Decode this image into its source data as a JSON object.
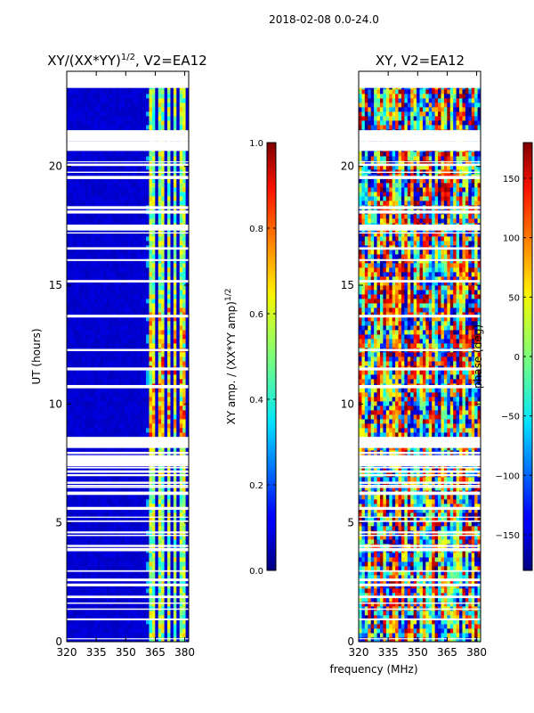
{
  "figure": {
    "suptitle": "2018-02-08 0.0-24.0",
    "xlabel": "frequency (MHz)"
  },
  "chart_data": [
    {
      "type": "heatmap",
      "title_main": "XY/(XX*YY)",
      "title_sup": "1/2",
      "title_rest": ", V2=EA12",
      "ylabel": "UT (hours)",
      "xlim": [
        320,
        382
      ],
      "ylim": [
        0,
        24
      ],
      "xticks": [
        320,
        335,
        350,
        365,
        380
      ],
      "yticks": [
        0,
        5,
        10,
        15,
        20
      ],
      "colorbar": {
        "label": "XY amp. / (XX*YY amp)",
        "label_sup": "1/2",
        "range": [
          0.0,
          1.0
        ],
        "ticks": [
          "0.0",
          "0.2",
          "0.4",
          "0.6",
          "0.8",
          "1.0"
        ],
        "tick_values": [
          0.0,
          0.2,
          0.4,
          0.6,
          0.8,
          1.0
        ],
        "colormap": "jet"
      },
      "description": "Normalized cross-correlation amplitude vs frequency and UT; mostly low (~0.05) with bright bands near 360-380 MHz"
    },
    {
      "type": "heatmap",
      "title": "XY, V2=EA12",
      "ylabel": "",
      "xlim": [
        320,
        382
      ],
      "ylim": [
        0,
        24
      ],
      "xticks": [
        320,
        335,
        350,
        365,
        380
      ],
      "yticks": [
        0,
        5,
        10,
        15,
        20
      ],
      "colorbar": {
        "label": "phase (deg)",
        "range": [
          -180,
          180
        ],
        "ticks": [
          "−150",
          "−100",
          "−50",
          "0",
          "50",
          "100",
          "150"
        ],
        "tick_values": [
          -150,
          -100,
          -50,
          0,
          50,
          100,
          150
        ],
        "colormap": "jet"
      },
      "description": "Cross-correlation phase vs frequency and UT; full-range noisy phase"
    }
  ]
}
